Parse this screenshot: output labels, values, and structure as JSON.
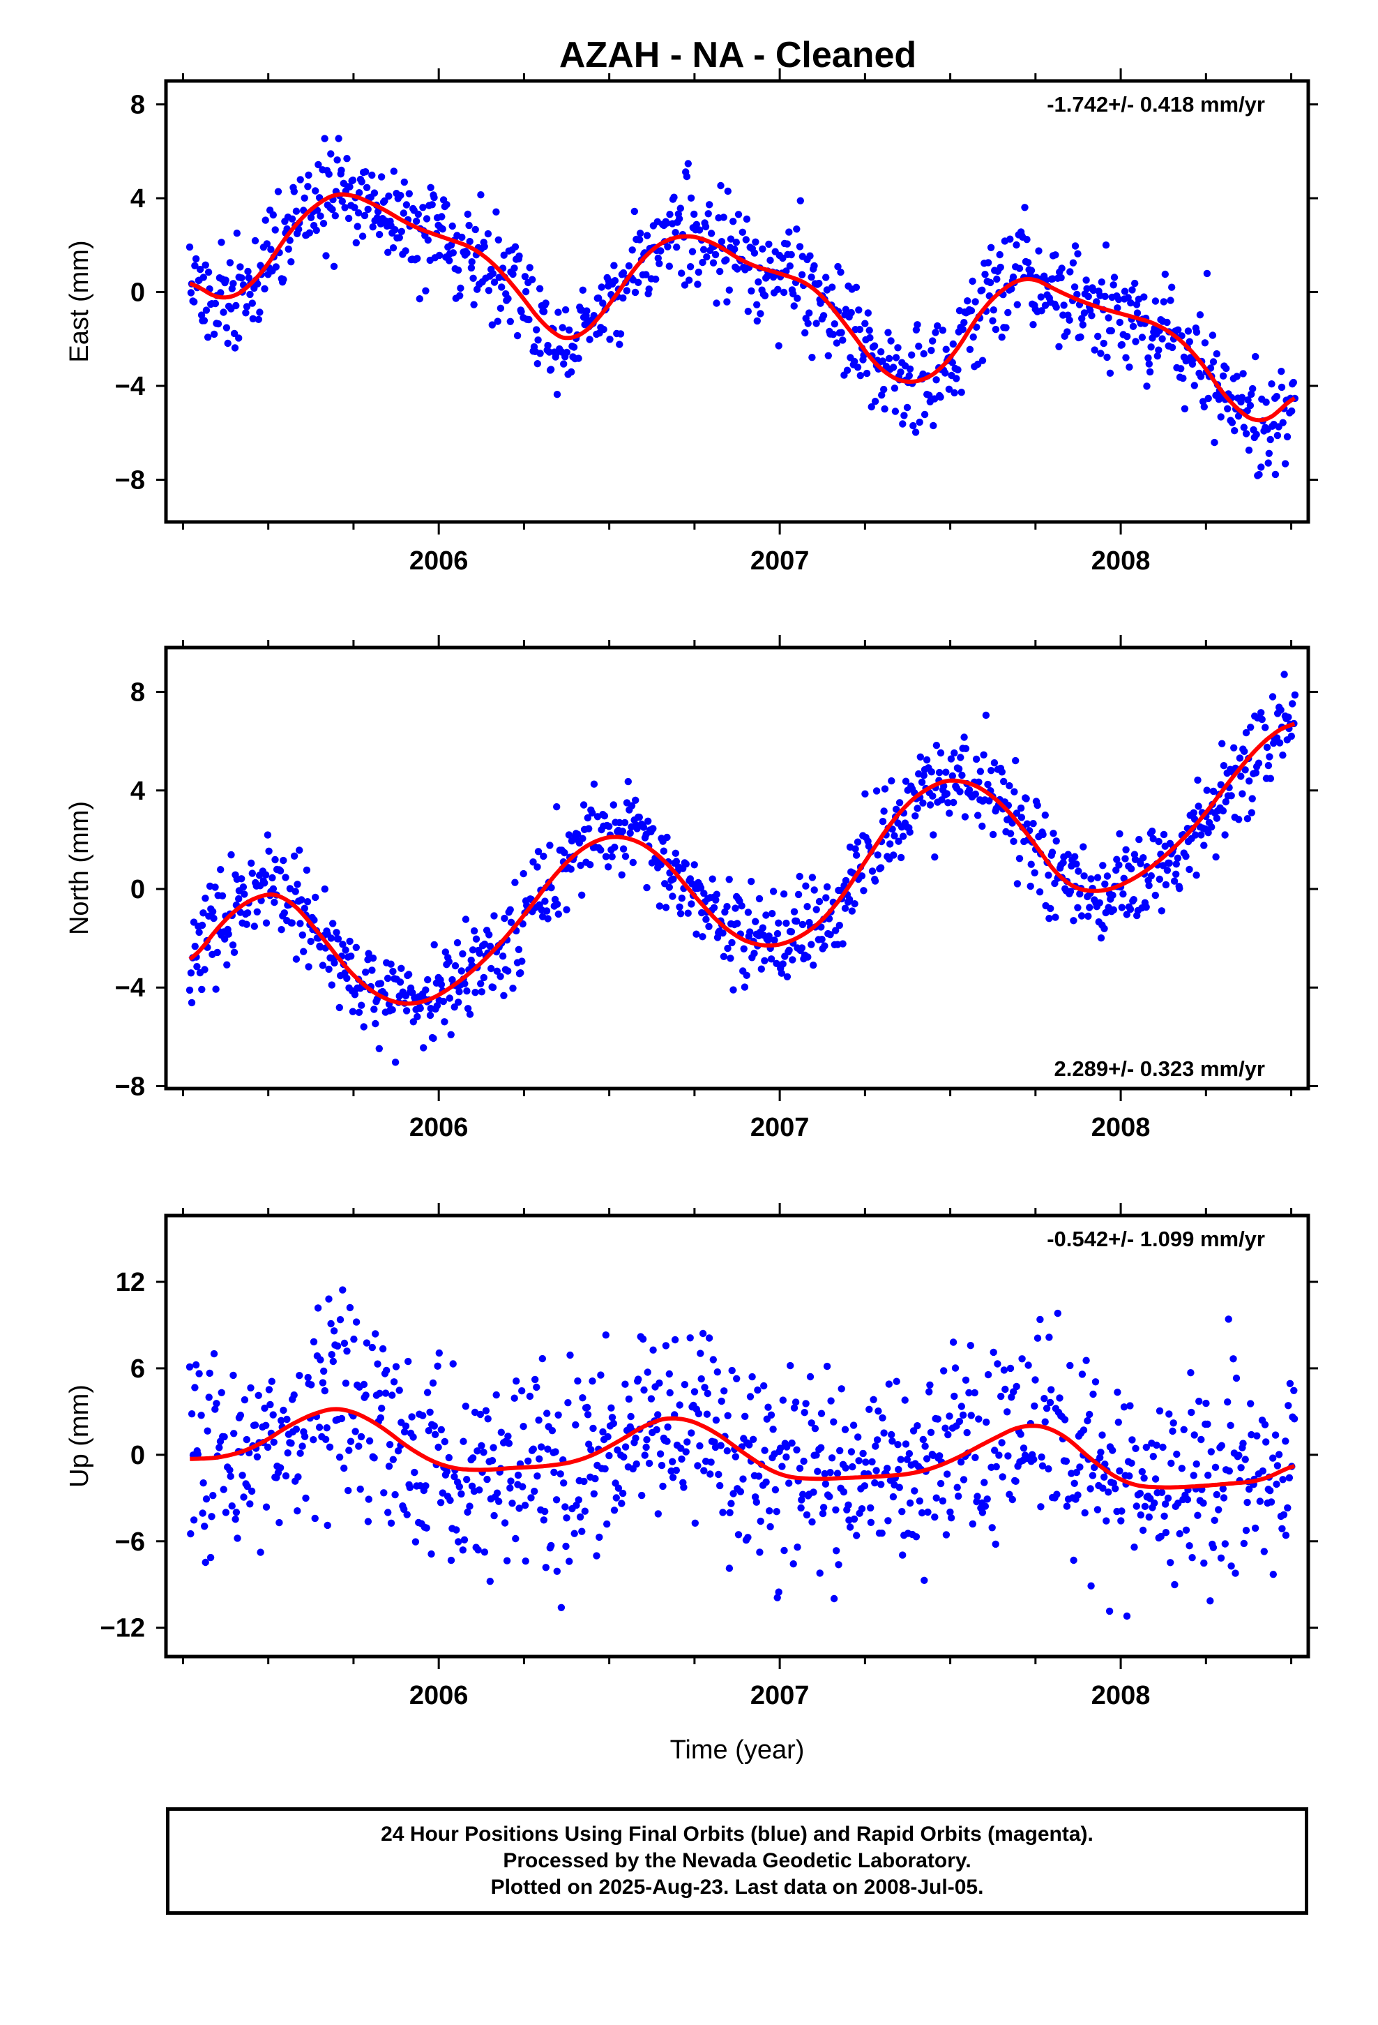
{
  "title": "AZAH  - NA - Cleaned",
  "footer": {
    "line1": "24 Hour Positions Using Final Orbits (blue) and Rapid Orbits (magenta).",
    "line2": "Processed by the Nevada Geodetic Laboratory.",
    "line3": "Plotted on 2025-Aug-23. Last data on 2008-Jul-05."
  },
  "colors": {
    "points": "#0000ff",
    "model": "#ff0000",
    "frame": "#000000"
  },
  "chart_data": [
    {
      "type": "scatter",
      "ylabel": "East (mm)",
      "xlim": [
        2005.2,
        2008.55
      ],
      "ylim": [
        -9.8,
        9.0
      ],
      "yticks": [
        -8,
        -4,
        0,
        4,
        8
      ],
      "xticks": [
        2006,
        2007,
        2008
      ],
      "xlabel": "",
      "rate_label": "-1.742+/- 0.418 mm/yr",
      "rate_position": "top-right",
      "data_start": 2005.27,
      "data_end": 2008.51,
      "series": [
        {
          "name": "",
          "kind": "points",
          "noise": 1.1,
          "seed": 11
        },
        {
          "name": "",
          "kind": "model",
          "x": [
            2005.27,
            2005.37,
            2005.47,
            2005.57,
            2005.67,
            2005.72,
            2005.82,
            2005.92,
            2006.02,
            2006.12,
            2006.22,
            2006.32,
            2006.4,
            2006.5,
            2006.6,
            2006.7,
            2006.8,
            2006.9,
            2007.0,
            2007.1,
            2007.2,
            2007.3,
            2007.4,
            2007.5,
            2007.6,
            2007.72,
            2007.82,
            2007.92,
            2008.02,
            2008.12,
            2008.22,
            2008.32,
            2008.42,
            2008.51
          ],
          "y": [
            0.5,
            -0.5,
            0.5,
            2.8,
            4.1,
            4.3,
            3.7,
            2.8,
            2.3,
            1.8,
            0.3,
            -1.7,
            -2.2,
            -0.6,
            1.6,
            2.5,
            2.2,
            1.2,
            0.8,
            0.3,
            -1.5,
            -3.5,
            -4.0,
            -3.0,
            -0.5,
            0.8,
            0.0,
            -0.6,
            -1.0,
            -1.4,
            -2.6,
            -4.8,
            -5.8,
            -4.3
          ]
        }
      ]
    },
    {
      "type": "scatter",
      "ylabel": "North (mm)",
      "xlim": [
        2005.2,
        2008.55
      ],
      "ylim": [
        -8.1,
        9.8
      ],
      "yticks": [
        -8,
        -4,
        0,
        4,
        8
      ],
      "xticks": [
        2006,
        2007,
        2008
      ],
      "xlabel": "",
      "rate_label": "2.289+/- 0.323 mm/yr",
      "rate_position": "bottom-right",
      "data_start": 2005.27,
      "data_end": 2008.51,
      "series": [
        {
          "name": "",
          "kind": "points",
          "noise": 0.95,
          "seed": 23
        },
        {
          "name": "",
          "kind": "model",
          "x": [
            2005.27,
            2005.37,
            2005.47,
            2005.55,
            2005.65,
            2005.75,
            2005.85,
            2005.95,
            2006.05,
            2006.15,
            2006.25,
            2006.35,
            2006.45,
            2006.55,
            2006.65,
            2006.75,
            2006.85,
            2006.95,
            2007.05,
            2007.15,
            2007.25,
            2007.35,
            2007.45,
            2007.53,
            2007.63,
            2007.73,
            2007.83,
            2007.93,
            2008.03,
            2008.13,
            2008.23,
            2008.33,
            2008.43,
            2008.51
          ],
          "y": [
            -3.1,
            -1.2,
            -0.2,
            -0.2,
            -1.8,
            -3.6,
            -4.6,
            -4.7,
            -3.9,
            -2.7,
            -1.1,
            0.8,
            2.0,
            2.2,
            1.4,
            -0.3,
            -1.8,
            -2.4,
            -2.1,
            -1.0,
            1.1,
            3.2,
            4.3,
            4.5,
            3.8,
            2.2,
            0.2,
            -0.2,
            0.3,
            1.3,
            2.7,
            4.6,
            6.2,
            6.8
          ]
        }
      ]
    },
    {
      "type": "scatter",
      "ylabel": "Up (mm)",
      "xlabel": "Time (year)",
      "xlim": [
        2005.2,
        2008.55
      ],
      "ylim": [
        -14.0,
        16.6
      ],
      "yticks": [
        -12,
        -6,
        0,
        6,
        12
      ],
      "xticks": [
        2006,
        2007,
        2008
      ],
      "rate_label": "-0.542+/- 1.099 mm/yr",
      "rate_position": "top-right",
      "data_start": 2005.27,
      "data_end": 2008.51,
      "series": [
        {
          "name": "",
          "kind": "points",
          "noise": 3.4,
          "seed": 37
        },
        {
          "name": "",
          "kind": "model",
          "x": [
            2005.27,
            2005.37,
            2005.47,
            2005.57,
            2005.67,
            2005.72,
            2005.82,
            2005.92,
            2006.02,
            2006.12,
            2006.22,
            2006.32,
            2006.42,
            2006.52,
            2006.62,
            2006.7,
            2006.8,
            2006.9,
            2007.0,
            2007.1,
            2007.2,
            2007.3,
            2007.4,
            2007.5,
            2007.6,
            2007.72,
            2007.82,
            2007.92,
            2008.02,
            2008.12,
            2008.22,
            2008.32,
            2008.42,
            2008.51
          ],
          "y": [
            -0.3,
            -0.2,
            0.6,
            2.2,
            3.2,
            3.3,
            2.2,
            0.3,
            -0.9,
            -1.1,
            -0.9,
            -0.8,
            -0.4,
            0.8,
            2.3,
            2.7,
            1.8,
            0.0,
            -1.5,
            -1.7,
            -1.6,
            -1.5,
            -1.3,
            -0.5,
            0.8,
            2.2,
            1.7,
            -0.5,
            -2.1,
            -2.3,
            -2.2,
            -2.0,
            -1.8,
            -0.6
          ]
        }
      ]
    }
  ]
}
